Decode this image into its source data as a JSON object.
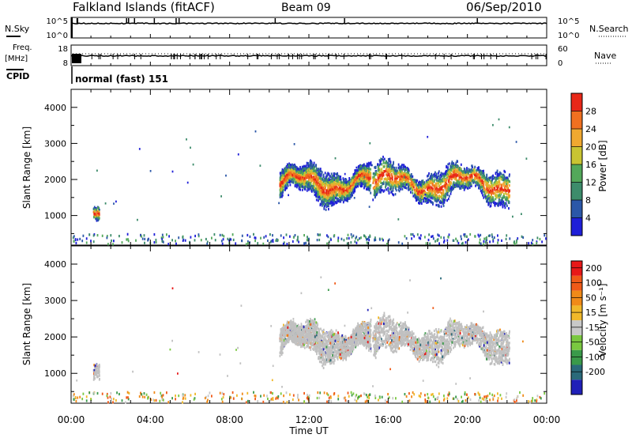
{
  "header": {
    "station": "Falkland Islands (fitACF)",
    "beam": "Beam 09",
    "date": "06/Sep/2010"
  },
  "panels": {
    "nsky_label": "N.Sky",
    "nsky_top": "10^5",
    "nsky_bottom": "10^0",
    "nsearch_label": "N.Search",
    "nsearch_top": "10^5",
    "nsearch_bottom": "10^0",
    "freq_label": "Freq.",
    "freq_unit": "[MHz]",
    "freq_top": "18",
    "freq_bottom": "8",
    "nave_label": "Nave",
    "nave_top": "60",
    "nave_bottom": "0",
    "cpid_label": "CPID",
    "cpid_value": "normal (fast) 151"
  },
  "colors": {
    "power_scale": [
      "#1f1fd8",
      "#2b57a8",
      "#3d8c6b",
      "#53a85a",
      "#c9c432",
      "#f0a830",
      "#f07020",
      "#e82818"
    ],
    "velocity_scale": [
      "#e81818",
      "#f05a18",
      "#f08a18",
      "#f0b82a",
      "#c8c8c8",
      "#7ac840",
      "#3a9a4a",
      "#2a6a7a",
      "#2020b8"
    ],
    "ground_scatter": "#c0c0c0"
  },
  "chart_data": [
    {
      "type": "heatmap",
      "title": "",
      "xlabel": "",
      "ylabel": "Slant Range [km]",
      "x_ticks": [
        "00:00",
        "04:00",
        "08:00",
        "12:00",
        "16:00",
        "20:00",
        "00:00"
      ],
      "xlim_hours": [
        0,
        24
      ],
      "y_ticks": [
        1000,
        2000,
        3000,
        4000
      ],
      "ylim": [
        180,
        4500
      ],
      "colorbar": {
        "label": "Power [dB]",
        "ticks": [
          "4",
          "8",
          "12",
          "16",
          "20",
          "24",
          "28"
        ],
        "range": [
          0,
          30
        ]
      },
      "echo_regions": [
        {
          "t_start": 10.5,
          "t_end": 15.1,
          "range_low": 1300,
          "range_high": 2600,
          "peak_power_db": 26
        },
        {
          "t_start": 15.2,
          "t_end": 22.1,
          "range_low": 1200,
          "range_high": 2600,
          "peak_power_db": 26
        },
        {
          "t_start": 1.1,
          "t_end": 1.4,
          "range_low": 800,
          "range_high": 1400,
          "peak_power_db": 20
        },
        {
          "t_start": 0,
          "t_end": 24,
          "range_low": 180,
          "range_high": 600,
          "peak_power_db": 14
        }
      ]
    },
    {
      "type": "heatmap",
      "title": "",
      "xlabel": "Time UT",
      "ylabel": "Slant Range [km]",
      "x_ticks": [
        "00:00",
        "04:00",
        "08:00",
        "12:00",
        "16:00",
        "20:00",
        "00:00"
      ],
      "xlim_hours": [
        0,
        24
      ],
      "y_ticks": [
        1000,
        2000,
        3000,
        4000
      ],
      "ylim": [
        180,
        4500
      ],
      "colorbar": {
        "label": "Velocity [m s⁻¹]",
        "ticks": [
          "200",
          "100",
          "50",
          "15",
          "-15",
          "-50",
          "-100",
          "-200"
        ],
        "range": [
          -250,
          250
        ]
      },
      "echo_regions": [
        {
          "t_start": 10.5,
          "t_end": 15.1,
          "range_low": 1300,
          "range_high": 2600,
          "dominant_velocity": 0
        },
        {
          "t_start": 15.2,
          "t_end": 22.1,
          "range_low": 1200,
          "range_high": 2600,
          "dominant_velocity": 0
        },
        {
          "t_start": 1.1,
          "t_end": 1.4,
          "range_low": 800,
          "range_high": 1400,
          "dominant_velocity": 0
        },
        {
          "t_start": 0,
          "t_end": 24,
          "range_low": 180,
          "range_high": 600,
          "dominant_velocity": -60
        }
      ]
    }
  ]
}
